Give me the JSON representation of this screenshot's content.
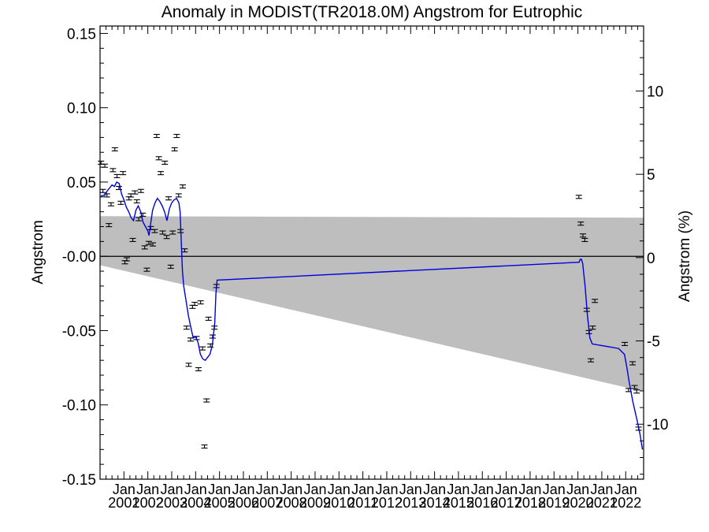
{
  "chart_data": {
    "type": "scatter",
    "title": "Anomaly in MODIST(TR2018.0M) Angstrom for Eutrophic",
    "ylabel": "Angstrom",
    "ylabel_right": "Angstrom (%)",
    "xlabel": "",
    "x_range": [
      2000.0,
      2022.75
    ],
    "ylim": [
      -0.15,
      0.155
    ],
    "ylim_right": [
      -13.3,
      13.9
    ],
    "y_ticks": [
      {
        "v": 0.15,
        "label": "0.15"
      },
      {
        "v": 0.1,
        "label": "0.10"
      },
      {
        "v": 0.05,
        "label": "0.05"
      },
      {
        "v": 0.0,
        "label": "-0.00"
      },
      {
        "v": -0.05,
        "label": "-0.05"
      },
      {
        "v": -0.1,
        "label": "-0.10"
      },
      {
        "v": -0.15,
        "label": "-0.15"
      }
    ],
    "y_ticks_right": [
      {
        "v": 10,
        "label": "10"
      },
      {
        "v": 5,
        "label": "5"
      },
      {
        "v": 0,
        "label": "0"
      },
      {
        "v": -5,
        "label": "-5"
      },
      {
        "v": -10,
        "label": "-10"
      }
    ],
    "x_ticks": [
      {
        "v": 2001,
        "label": "Jan",
        "label2": "2001"
      },
      {
        "v": 2002,
        "label": "Jan",
        "label2": "2002"
      },
      {
        "v": 2003,
        "label": "Jan",
        "label2": "2003"
      },
      {
        "v": 2004,
        "label": "Jan",
        "label2": "2004"
      },
      {
        "v": 2005,
        "label": "Jan",
        "label2": "2005"
      },
      {
        "v": 2006,
        "label": "Jan",
        "label2": "2006"
      },
      {
        "v": 2007,
        "label": "Jan",
        "label2": "2007"
      },
      {
        "v": 2008,
        "label": "Jan",
        "label2": "2008"
      },
      {
        "v": 2009,
        "label": "Jan",
        "label2": "2009"
      },
      {
        "v": 2010,
        "label": "Jan",
        "label2": "2010"
      },
      {
        "v": 2011,
        "label": "Jan",
        "label2": "2011"
      },
      {
        "v": 2012,
        "label": "Jan",
        "label2": "2012"
      },
      {
        "v": 2013,
        "label": "Jan",
        "label2": "2013"
      },
      {
        "v": 2014,
        "label": "Jan",
        "label2": "2014"
      },
      {
        "v": 2015,
        "label": "Jan",
        "label2": "2015"
      },
      {
        "v": 2016,
        "label": "Jan",
        "label2": "2016"
      },
      {
        "v": 2017,
        "label": "Jan",
        "label2": "2017"
      },
      {
        "v": 2018,
        "label": "Jan",
        "label2": "2018"
      },
      {
        "v": 2019,
        "label": "Jan",
        "label2": "2019"
      },
      {
        "v": 2020,
        "label": "Jan",
        "label2": "2020"
      },
      {
        "v": 2021,
        "label": "Jan",
        "label2": "2021"
      },
      {
        "v": 2022,
        "label": "Jan",
        "label2": "2022"
      }
    ],
    "zero_line": 0.0,
    "band": {
      "color": "#bebebe",
      "upper": [
        [
          2000.0,
          0.027
        ],
        [
          2022.75,
          0.026
        ]
      ],
      "lower": [
        [
          2000.0,
          -0.006
        ],
        [
          2022.75,
          -0.091
        ]
      ]
    },
    "series": [
      {
        "kind": "points_with_errorbars",
        "color": "#000000",
        "points": [
          [
            2000.04,
            0.063
          ],
          [
            2000.12,
            0.044
          ],
          [
            2000.2,
            0.061
          ],
          [
            2000.29,
            0.041
          ],
          [
            2000.37,
            0.021
          ],
          [
            2000.46,
            0.035
          ],
          [
            2000.54,
            0.058
          ],
          [
            2000.62,
            0.072
          ],
          [
            2000.71,
            0.054
          ],
          [
            2000.79,
            0.046
          ],
          [
            2000.87,
            0.036
          ],
          [
            2000.96,
            0.056
          ],
          [
            2001.04,
            -0.004
          ],
          [
            2001.12,
            -0.002
          ],
          [
            2001.21,
            0.039
          ],
          [
            2001.29,
            0.041
          ],
          [
            2001.37,
            0.011
          ],
          [
            2001.46,
            0.043
          ],
          [
            2001.54,
            0.037
          ],
          [
            2001.62,
            0.025
          ],
          [
            2001.71,
            0.044
          ],
          [
            2001.79,
            0.028
          ],
          [
            2001.87,
            0.006
          ],
          [
            2001.96,
            -0.009
          ],
          [
            2002.04,
            0.009
          ],
          [
            2002.12,
            0.019
          ],
          [
            2002.21,
            0.008
          ],
          [
            2002.29,
            0.017
          ],
          [
            2002.37,
            0.081
          ],
          [
            2002.46,
            0.066
          ],
          [
            2002.54,
            0.056
          ],
          [
            2002.62,
            0.016
          ],
          [
            2002.71,
            0.063
          ],
          [
            2002.79,
            0.013
          ],
          [
            2002.87,
            0.039
          ],
          [
            2002.96,
            -0.007
          ],
          [
            2003.04,
            0.016
          ],
          [
            2003.12,
            0.072
          ],
          [
            2003.21,
            0.081
          ],
          [
            2003.29,
            0.041
          ],
          [
            2003.37,
            0.017
          ],
          [
            2003.46,
            0.047
          ],
          [
            2003.54,
            0.004
          ],
          [
            2003.62,
            -0.048
          ],
          [
            2003.71,
            -0.073
          ],
          [
            2003.79,
            -0.056
          ],
          [
            2003.87,
            -0.034
          ],
          [
            2003.96,
            -0.032
          ],
          [
            2004.04,
            -0.055
          ],
          [
            2004.12,
            -0.076
          ],
          [
            2004.21,
            -0.031
          ],
          [
            2004.29,
            -0.062
          ],
          [
            2004.37,
            -0.128
          ],
          [
            2004.46,
            -0.097
          ],
          [
            2004.54,
            -0.042
          ],
          [
            2004.62,
            -0.06
          ],
          [
            2004.71,
            -0.054
          ],
          [
            2004.79,
            -0.048
          ],
          [
            2004.87,
            -0.02
          ],
          [
            2020.04,
            0.04
          ],
          [
            2020.12,
            0.022
          ],
          [
            2020.21,
            0.014
          ],
          [
            2020.29,
            0.011
          ],
          [
            2020.37,
            -0.036
          ],
          [
            2020.46,
            -0.051
          ],
          [
            2020.54,
            -0.07
          ],
          [
            2020.62,
            -0.048
          ],
          [
            2020.71,
            -0.03
          ],
          [
            2021.96,
            -0.059
          ],
          [
            2022.12,
            -0.09
          ],
          [
            2022.29,
            -0.072
          ],
          [
            2022.37,
            -0.088
          ],
          [
            2022.46,
            -0.091
          ],
          [
            2022.54,
            -0.116
          ]
        ]
      },
      {
        "kind": "line",
        "color": "#0000dd",
        "points": [
          [
            2000.0,
            0.04
          ],
          [
            2000.1,
            0.041
          ],
          [
            2000.2,
            0.041
          ],
          [
            2000.3,
            0.044
          ],
          [
            2000.4,
            0.046
          ],
          [
            2000.5,
            0.048
          ],
          [
            2000.6,
            0.047
          ],
          [
            2000.7,
            0.05
          ],
          [
            2000.8,
            0.049
          ],
          [
            2000.9,
            0.042
          ],
          [
            2001.0,
            0.038
          ],
          [
            2001.1,
            0.033
          ],
          [
            2001.2,
            0.03
          ],
          [
            2001.3,
            0.026
          ],
          [
            2001.4,
            0.024
          ],
          [
            2001.5,
            0.031
          ],
          [
            2001.6,
            0.034
          ],
          [
            2001.7,
            0.03
          ],
          [
            2001.8,
            0.023
          ],
          [
            2001.9,
            0.02
          ],
          [
            2002.0,
            0.017
          ],
          [
            2002.05,
            0.014
          ],
          [
            2002.1,
            0.02
          ],
          [
            2002.2,
            0.031
          ],
          [
            2002.3,
            0.036
          ],
          [
            2002.4,
            0.039
          ],
          [
            2002.5,
            0.037
          ],
          [
            2002.6,
            0.034
          ],
          [
            2002.7,
            0.03
          ],
          [
            2002.8,
            0.024
          ],
          [
            2002.9,
            0.032
          ],
          [
            2003.0,
            0.036
          ],
          [
            2003.1,
            0.038
          ],
          [
            2003.2,
            0.039
          ],
          [
            2003.3,
            0.036
          ],
          [
            2003.35,
            0.03
          ],
          [
            2003.4,
            0.01
          ],
          [
            2003.45,
            -0.01
          ],
          [
            2003.5,
            -0.02
          ],
          [
            2003.6,
            -0.03
          ],
          [
            2003.7,
            -0.04
          ],
          [
            2003.8,
            -0.048
          ],
          [
            2003.9,
            -0.055
          ],
          [
            2004.0,
            -0.054
          ],
          [
            2004.1,
            -0.058
          ],
          [
            2004.2,
            -0.066
          ],
          [
            2004.3,
            -0.069
          ],
          [
            2004.4,
            -0.07
          ],
          [
            2004.5,
            -0.068
          ],
          [
            2004.6,
            -0.066
          ],
          [
            2004.7,
            -0.06
          ],
          [
            2004.8,
            -0.045
          ],
          [
            2004.85,
            -0.025
          ],
          [
            2004.9,
            -0.016
          ],
          [
            2020.0,
            -0.004
          ],
          [
            2020.05,
            -0.004
          ],
          [
            2020.1,
            -0.002
          ],
          [
            2020.15,
            -0.002
          ],
          [
            2020.2,
            -0.005
          ],
          [
            2020.3,
            -0.02
          ],
          [
            2020.4,
            -0.04
          ],
          [
            2020.5,
            -0.055
          ],
          [
            2020.6,
            -0.059
          ],
          [
            2021.7,
            -0.062
          ],
          [
            2021.95,
            -0.066
          ],
          [
            2022.05,
            -0.075
          ],
          [
            2022.15,
            -0.085
          ],
          [
            2022.3,
            -0.098
          ],
          [
            2022.4,
            -0.105
          ],
          [
            2022.5,
            -0.112
          ],
          [
            2022.6,
            -0.12
          ],
          [
            2022.7,
            -0.13
          ]
        ]
      }
    ]
  }
}
